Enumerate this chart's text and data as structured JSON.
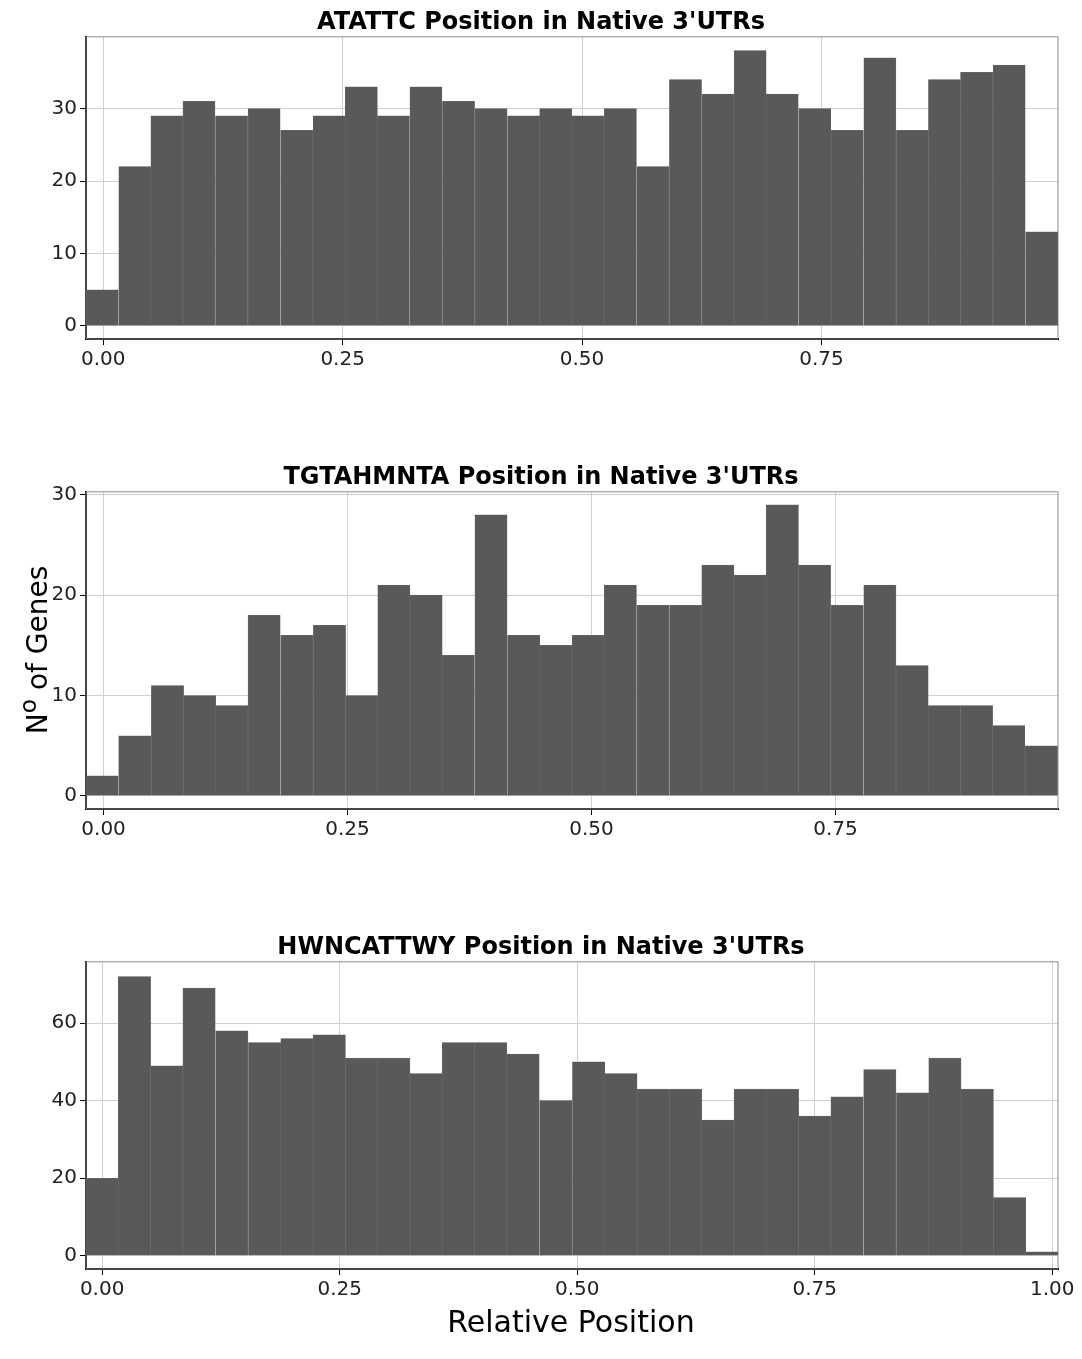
{
  "chart_data": [
    {
      "type": "histogram",
      "title": "ATATTC Position in Native 3'UTRs",
      "color": "#595959",
      "grid": true,
      "bins": [
        -0.018,
        0.016,
        0.05,
        0.083,
        0.117,
        0.151,
        0.185,
        0.219,
        0.253,
        0.286,
        0.32,
        0.354,
        0.388,
        0.422,
        0.456,
        0.489,
        0.523,
        0.557,
        0.591,
        0.625,
        0.659,
        0.692,
        0.726,
        0.76,
        0.794,
        0.828,
        0.862,
        0.895,
        0.929,
        0.963,
        0.997
      ],
      "values": [
        5,
        22,
        29,
        31,
        29,
        30,
        27,
        29,
        33,
        29,
        33,
        31,
        30,
        29,
        30,
        29,
        30,
        22,
        34,
        32,
        38,
        32,
        30,
        27,
        37,
        27,
        34,
        35,
        36,
        13
      ],
      "xlim": [
        -0.018,
        0.997
      ],
      "xticks": [
        {
          "value": 0,
          "label": "0.00"
        },
        {
          "value": 0.25,
          "label": "0.25"
        },
        {
          "value": 0.5,
          "label": "0.50"
        },
        {
          "value": 0.75,
          "label": "0.75"
        }
      ],
      "ylim": [
        -1.8,
        39.9
      ],
      "yticks": [
        0,
        10,
        20,
        30
      ]
    },
    {
      "type": "histogram",
      "title": "TGTAHMNTA Position in Native 3'UTRs",
      "ylabel": "N$^{o}$ of Genes",
      "color": "#595959",
      "grid": true,
      "bins": [
        -0.018,
        0.015,
        0.049,
        0.082,
        0.115,
        0.148,
        0.181,
        0.215,
        0.248,
        0.281,
        0.314,
        0.347,
        0.38,
        0.414,
        0.447,
        0.48,
        0.513,
        0.546,
        0.58,
        0.613,
        0.646,
        0.679,
        0.712,
        0.745,
        0.779,
        0.812,
        0.845,
        0.878,
        0.911,
        0.944,
        0.978
      ],
      "values": [
        2,
        6,
        11,
        10,
        9,
        18,
        16,
        17,
        10,
        21,
        20,
        14,
        28,
        16,
        15,
        16,
        21,
        19,
        19,
        23,
        22,
        29,
        23,
        19,
        21,
        13,
        9,
        9,
        7,
        5
      ],
      "xlim": [
        -0.018,
        0.978
      ],
      "xticks": [
        {
          "value": 0,
          "label": "0.00"
        },
        {
          "value": 0.25,
          "label": "0.25"
        },
        {
          "value": 0.5,
          "label": "0.50"
        },
        {
          "value": 0.75,
          "label": "0.75"
        }
      ],
      "ylim": [
        -1.3,
        30.3
      ],
      "yticks": [
        0,
        10,
        20,
        30
      ]
    },
    {
      "type": "histogram",
      "title": "HWNCATTWY Position in Native 3'UTRs",
      "xlabel": "Relative Position",
      "color": "#595959",
      "grid": true,
      "bins": [
        -0.017,
        0.017,
        0.051,
        0.085,
        0.119,
        0.154,
        0.188,
        0.222,
        0.256,
        0.29,
        0.324,
        0.358,
        0.392,
        0.426,
        0.46,
        0.495,
        0.529,
        0.563,
        0.597,
        0.631,
        0.665,
        0.699,
        0.733,
        0.767,
        0.801,
        0.836,
        0.87,
        0.904,
        0.938,
        0.972,
        1.006
      ],
      "values": [
        20,
        72,
        49,
        69,
        58,
        55,
        56,
        57,
        51,
        51,
        47,
        55,
        55,
        52,
        40,
        50,
        47,
        43,
        43,
        35,
        43,
        43,
        36,
        41,
        48,
        42,
        51,
        43,
        15,
        1
      ],
      "xlim": [
        -0.017,
        1.006
      ],
      "xticks": [
        {
          "value": 0,
          "label": "0.00"
        },
        {
          "value": 0.25,
          "label": "0.25"
        },
        {
          "value": 0.5,
          "label": "0.50"
        },
        {
          "value": 0.75,
          "label": "0.75"
        },
        {
          "value": 1,
          "label": "1.00"
        }
      ],
      "ylim": [
        -3.4,
        75.8
      ],
      "yticks": [
        0,
        20,
        40,
        60
      ]
    }
  ]
}
